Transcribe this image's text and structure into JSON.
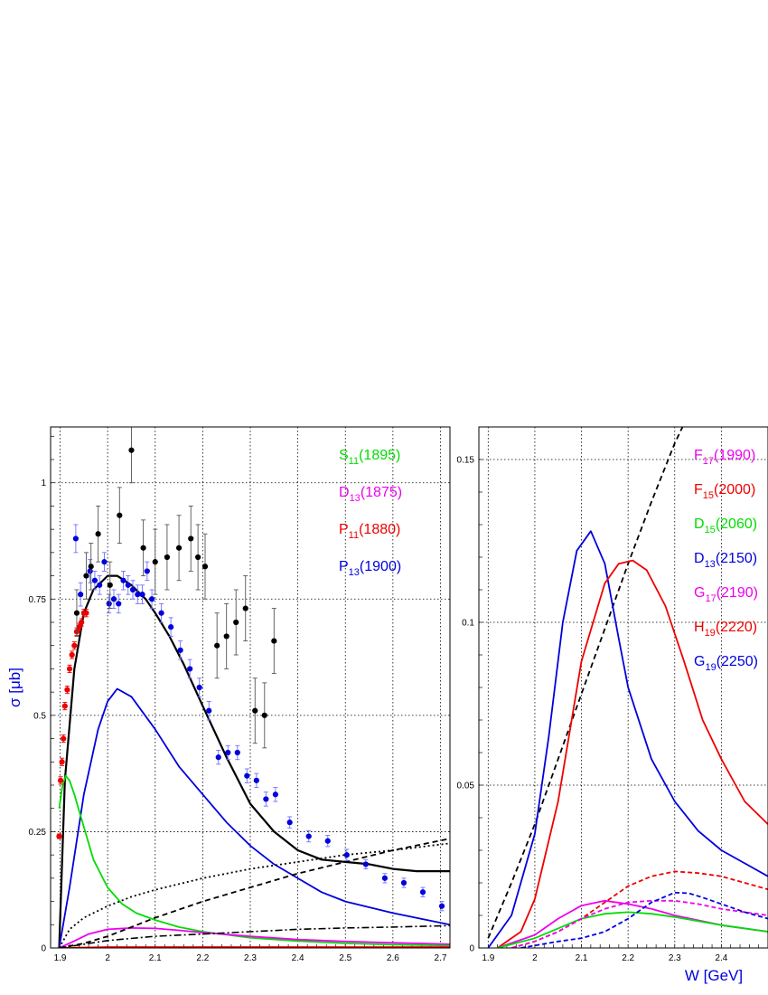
{
  "chart_data": [
    {
      "type": "scatter",
      "ylabel": "σ [μb]",
      "xlabel": "",
      "xlim": [
        1.88,
        2.72
      ],
      "ylim": [
        0,
        1.12
      ],
      "grid": true,
      "xticks": [
        "1.9",
        "2",
        "2.1",
        "2.2",
        "2.3",
        "2.4",
        "2.5",
        "2.6",
        "2.7"
      ],
      "yticks": [
        "0",
        "0.25",
        "0.5",
        "0.75",
        "1"
      ],
      "legend": [
        {
          "main": "S",
          "sub": "11",
          "rest": "(1895)",
          "color": "#00dd00"
        },
        {
          "main": "D",
          "sub": "13",
          "rest": "(1875)",
          "color": "#ee00ee"
        },
        {
          "main": "P",
          "sub": "11",
          "rest": "(1880)",
          "color": "#ee0000"
        },
        {
          "main": "P",
          "sub": "13",
          "rest": "(1900)",
          "color": "#0000dd"
        }
      ],
      "points": [
        {
          "name": "red-data",
          "color": "#ee0000",
          "errcolor": "#ee0000",
          "x": [
            1.898,
            1.901,
            1.904,
            1.907,
            1.91,
            1.915,
            1.92,
            1.925,
            1.93,
            1.935,
            1.94,
            1.945,
            1.95,
            1.955
          ],
          "y": [
            0.24,
            0.36,
            0.4,
            0.45,
            0.52,
            0.555,
            0.6,
            0.63,
            0.65,
            0.68,
            0.69,
            0.7,
            0.72,
            0.72
          ],
          "err": [
            0.005,
            0.008,
            0.008,
            0.008,
            0.008,
            0.008,
            0.008,
            0.008,
            0.008,
            0.008,
            0.008,
            0.008,
            0.008,
            0.008
          ]
        },
        {
          "name": "blue-data",
          "color": "#0000dd",
          "errcolor": "#7070ff",
          "x": [
            1.933,
            1.943,
            1.963,
            1.973,
            1.983,
            1.993,
            2.003,
            2.013,
            2.023,
            2.033,
            2.043,
            2.053,
            2.063,
            2.073,
            2.083,
            2.093,
            2.113,
            2.133,
            2.153,
            2.173,
            2.193,
            2.213,
            2.233,
            2.253,
            2.273,
            2.293,
            2.313,
            2.333,
            2.353,
            2.383,
            2.423,
            2.463,
            2.503,
            2.543,
            2.583,
            2.623,
            2.663,
            2.703
          ],
          "y": [
            0.88,
            0.76,
            0.81,
            0.79,
            0.78,
            0.83,
            0.74,
            0.75,
            0.74,
            0.79,
            0.78,
            0.77,
            0.76,
            0.76,
            0.81,
            0.75,
            0.72,
            0.69,
            0.64,
            0.6,
            0.56,
            0.51,
            0.41,
            0.42,
            0.42,
            0.37,
            0.36,
            0.32,
            0.33,
            0.27,
            0.24,
            0.23,
            0.2,
            0.18,
            0.15,
            0.14,
            0.12,
            0.09
          ],
          "err": [
            0.03,
            0.025,
            0.025,
            0.02,
            0.02,
            0.02,
            0.02,
            0.02,
            0.02,
            0.02,
            0.02,
            0.02,
            0.02,
            0.02,
            0.02,
            0.02,
            0.02,
            0.02,
            0.02,
            0.02,
            0.02,
            0.02,
            0.015,
            0.015,
            0.015,
            0.015,
            0.015,
            0.015,
            0.015,
            0.012,
            0.012,
            0.012,
            0.012,
            0.01,
            0.01,
            0.01,
            0.01,
            0.01
          ]
        },
        {
          "name": "black-data",
          "color": "#000000",
          "errcolor": "#555555",
          "x": [
            1.935,
            1.955,
            1.965,
            1.98,
            2.005,
            2.025,
            2.05,
            2.075,
            2.1,
            2.125,
            2.15,
            2.175,
            2.19,
            2.205,
            2.23,
            2.25,
            2.27,
            2.29,
            2.31,
            2.33,
            2.35
          ],
          "y": [
            0.72,
            0.8,
            0.82,
            0.89,
            0.78,
            0.93,
            1.07,
            0.86,
            0.83,
            0.84,
            0.86,
            0.88,
            0.84,
            0.82,
            0.65,
            0.67,
            0.7,
            0.73,
            0.51,
            0.5,
            0.66
          ],
          "err": [
            0.05,
            0.05,
            0.05,
            0.06,
            0.05,
            0.06,
            0.07,
            0.06,
            0.07,
            0.07,
            0.07,
            0.07,
            0.07,
            0.07,
            0.07,
            0.07,
            0.07,
            0.07,
            0.07,
            0.07,
            0.07
          ]
        }
      ],
      "curves": [
        {
          "name": "total",
          "color": "#000000",
          "dash": "",
          "width": 2.2,
          "x": [
            1.898,
            1.91,
            1.93,
            1.95,
            1.97,
            2.0,
            2.02,
            2.05,
            2.08,
            2.1,
            2.13,
            2.16,
            2.2,
            2.25,
            2.3,
            2.35,
            2.4,
            2.45,
            2.5,
            2.55,
            2.6,
            2.65,
            2.72
          ],
          "y": [
            0.0,
            0.36,
            0.6,
            0.72,
            0.77,
            0.8,
            0.8,
            0.78,
            0.75,
            0.72,
            0.67,
            0.61,
            0.52,
            0.41,
            0.31,
            0.25,
            0.21,
            0.19,
            0.185,
            0.18,
            0.17,
            0.165,
            0.165
          ]
        },
        {
          "name": "P13(1900)",
          "color": "#0000dd",
          "dash": "",
          "width": 1.8,
          "x": [
            1.898,
            1.92,
            1.95,
            1.98,
            2.0,
            2.02,
            2.05,
            2.1,
            2.15,
            2.2,
            2.25,
            2.3,
            2.35,
            2.4,
            2.45,
            2.5,
            2.6,
            2.72
          ],
          "y": [
            0.0,
            0.13,
            0.33,
            0.47,
            0.53,
            0.557,
            0.54,
            0.47,
            0.39,
            0.33,
            0.27,
            0.22,
            0.18,
            0.15,
            0.12,
            0.1,
            0.075,
            0.05
          ]
        },
        {
          "name": "S11(1895)",
          "color": "#00dd00",
          "dash": "",
          "width": 1.8,
          "x": [
            1.898,
            1.905,
            1.912,
            1.92,
            1.93,
            1.95,
            1.97,
            2.0,
            2.03,
            2.06,
            2.1,
            2.15,
            2.2,
            2.3,
            2.4,
            2.5,
            2.6,
            2.72
          ],
          "y": [
            0.3,
            0.35,
            0.37,
            0.36,
            0.33,
            0.26,
            0.19,
            0.13,
            0.095,
            0.075,
            0.06,
            0.045,
            0.035,
            0.022,
            0.015,
            0.01,
            0.007,
            0.005
          ]
        },
        {
          "name": "D13(1875)",
          "color": "#ee00ee",
          "dash": "",
          "width": 1.8,
          "x": [
            1.898,
            1.93,
            1.96,
            2.0,
            2.05,
            2.1,
            2.15,
            2.2,
            2.3,
            2.4,
            2.5,
            2.6,
            2.72
          ],
          "y": [
            0.0,
            0.015,
            0.03,
            0.04,
            0.043,
            0.042,
            0.038,
            0.033,
            0.025,
            0.018,
            0.014,
            0.011,
            0.008
          ]
        },
        {
          "name": "P11(1880)",
          "color": "#ee0000",
          "dash": "",
          "width": 1.8,
          "x": [
            1.898,
            2.0,
            2.2,
            2.4,
            2.6,
            2.72
          ],
          "y": [
            0.0,
            0.002,
            0.002,
            0.002,
            0.002,
            0.002
          ]
        },
        {
          "name": "dashed",
          "color": "#000000",
          "dash": "6,4",
          "width": 1.8,
          "x": [
            1.898,
            1.95,
            2.0,
            2.05,
            2.1,
            2.2,
            2.3,
            2.4,
            2.5,
            2.6,
            2.72
          ],
          "y": [
            0.0,
            0.01,
            0.025,
            0.045,
            0.065,
            0.1,
            0.13,
            0.16,
            0.185,
            0.21,
            0.235
          ]
        },
        {
          "name": "dotted",
          "color": "#000000",
          "dash": "2,3",
          "width": 1.8,
          "x": [
            1.898,
            1.92,
            1.95,
            2.0,
            2.05,
            2.1,
            2.2,
            2.3,
            2.4,
            2.5,
            2.6,
            2.72
          ],
          "y": [
            0.0,
            0.04,
            0.065,
            0.09,
            0.11,
            0.125,
            0.15,
            0.17,
            0.185,
            0.2,
            0.21,
            0.225
          ]
        },
        {
          "name": "dash-dot",
          "color": "#000000",
          "dash": "8,3,2,3",
          "width": 1.6,
          "x": [
            1.898,
            1.95,
            2.0,
            2.1,
            2.2,
            2.3,
            2.4,
            2.5,
            2.6,
            2.72
          ],
          "y": [
            0.0,
            0.008,
            0.016,
            0.025,
            0.03,
            0.035,
            0.04,
            0.043,
            0.045,
            0.048
          ]
        }
      ]
    },
    {
      "type": "line",
      "xlabel": "W [GeV]",
      "ylabel": "",
      "xlim": [
        1.88,
        2.5
      ],
      "ylim": [
        0,
        0.16
      ],
      "grid": true,
      "xticks": [
        "1.9",
        "2",
        "2.1",
        "2.2",
        "2.3",
        "2.4"
      ],
      "yticks": [
        "0",
        "0.05",
        "0.1",
        "0.15"
      ],
      "legend": [
        {
          "main": "F",
          "sub": "17",
          "rest": "(1990)",
          "color": "#ee00ee"
        },
        {
          "main": "F",
          "sub": "15",
          "rest": "(2000)",
          "color": "#ee0000"
        },
        {
          "main": "D",
          "sub": "15",
          "rest": "(2060)",
          "color": "#00dd00"
        },
        {
          "main": "D",
          "sub": "13",
          "rest": "(2150)",
          "color": "#0000dd"
        },
        {
          "main": "G",
          "sub": "17",
          "rest": "(2190)",
          "color": "#ee00ee"
        },
        {
          "main": "H",
          "sub": "19",
          "rest": "(2220)",
          "color": "#ee0000"
        },
        {
          "main": "G",
          "sub": "19",
          "rest": "(2250)",
          "color": "#0000dd"
        }
      ],
      "curves": [
        {
          "name": "black-dashed",
          "color": "#000000",
          "dash": "6,4",
          "width": 1.8,
          "x": [
            1.9,
            1.95,
            2.0,
            2.05,
            2.1,
            2.15,
            2.2,
            2.25,
            2.3,
            2.35
          ],
          "y": [
            0.003,
            0.02,
            0.038,
            0.058,
            0.078,
            0.098,
            0.118,
            0.137,
            0.155,
            0.17
          ]
        },
        {
          "name": "D13(2150)",
          "color": "#0000dd",
          "dash": "",
          "width": 1.8,
          "x": [
            1.9,
            1.95,
            2.0,
            2.03,
            2.06,
            2.09,
            2.12,
            2.15,
            2.18,
            2.2,
            2.25,
            2.3,
            2.35,
            2.4,
            2.45,
            2.5
          ],
          "y": [
            0.0,
            0.01,
            0.035,
            0.065,
            0.1,
            0.122,
            0.128,
            0.118,
            0.095,
            0.08,
            0.058,
            0.045,
            0.036,
            0.03,
            0.026,
            0.022
          ]
        },
        {
          "name": "F15(2000)",
          "color": "#ee0000",
          "dash": "",
          "width": 1.8,
          "x": [
            1.92,
            1.97,
            2.0,
            2.05,
            2.1,
            2.15,
            2.18,
            2.21,
            2.24,
            2.28,
            2.32,
            2.36,
            2.4,
            2.45,
            2.5
          ],
          "y": [
            0.0,
            0.005,
            0.015,
            0.045,
            0.088,
            0.112,
            0.118,
            0.119,
            0.116,
            0.105,
            0.088,
            0.07,
            0.058,
            0.045,
            0.038
          ]
        },
        {
          "name": "F17(1990)",
          "color": "#ee00ee",
          "dash": "",
          "width": 1.8,
          "x": [
            1.92,
            2.0,
            2.05,
            2.1,
            2.15,
            2.2,
            2.25,
            2.3,
            2.4,
            2.5
          ],
          "y": [
            0.0,
            0.004,
            0.009,
            0.013,
            0.0145,
            0.0135,
            0.012,
            0.01,
            0.007,
            0.005
          ]
        },
        {
          "name": "D15(2060)",
          "color": "#00dd00",
          "dash": "",
          "width": 1.8,
          "x": [
            1.92,
            2.0,
            2.05,
            2.1,
            2.15,
            2.2,
            2.25,
            2.3,
            2.4,
            2.5
          ],
          "y": [
            0.0,
            0.003,
            0.006,
            0.009,
            0.0105,
            0.011,
            0.0105,
            0.0095,
            0.007,
            0.005
          ]
        },
        {
          "name": "H19(2220)",
          "color": "#ee0000",
          "dash": "5,3",
          "width": 1.8,
          "x": [
            1.95,
            2.0,
            2.05,
            2.1,
            2.15,
            2.2,
            2.25,
            2.3,
            2.35,
            2.4,
            2.45,
            2.5
          ],
          "y": [
            0.0,
            0.002,
            0.005,
            0.009,
            0.014,
            0.019,
            0.022,
            0.0235,
            0.023,
            0.022,
            0.02,
            0.018
          ]
        },
        {
          "name": "G17(2190)",
          "color": "#ee00ee",
          "dash": "5,3",
          "width": 1.8,
          "x": [
            1.95,
            2.0,
            2.05,
            2.1,
            2.15,
            2.2,
            2.25,
            2.3,
            2.35,
            2.4,
            2.45,
            2.5
          ],
          "y": [
            0.0,
            0.002,
            0.005,
            0.009,
            0.012,
            0.014,
            0.0145,
            0.0145,
            0.0135,
            0.012,
            0.011,
            0.01
          ]
        },
        {
          "name": "G19(2250)",
          "color": "#0000dd",
          "dash": "5,3",
          "width": 1.8,
          "x": [
            1.97,
            2.05,
            2.1,
            2.15,
            2.2,
            2.25,
            2.3,
            2.33,
            2.36,
            2.4,
            2.45,
            2.5
          ],
          "y": [
            0.0,
            0.002,
            0.003,
            0.005,
            0.009,
            0.014,
            0.017,
            0.0168,
            0.0155,
            0.0135,
            0.011,
            0.009
          ]
        }
      ]
    }
  ]
}
